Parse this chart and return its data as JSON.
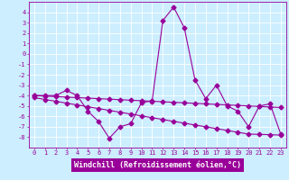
{
  "x": [
    0,
    1,
    2,
    3,
    4,
    5,
    6,
    7,
    8,
    9,
    10,
    11,
    12,
    13,
    14,
    15,
    16,
    17,
    18,
    19,
    20,
    21,
    22,
    23
  ],
  "line1": [
    -4,
    -4,
    -4,
    -3.5,
    -4,
    -5.5,
    -6.5,
    -8.1,
    -7,
    -6.7,
    -4.7,
    -4.5,
    3.2,
    4.5,
    2.5,
    -2.5,
    -4.3,
    -3.0,
    -5.0,
    -5.5,
    -7.0,
    -5.0,
    -4.8,
    -7.7
  ],
  "line2": [
    -4.0,
    -4.05,
    -4.1,
    -4.15,
    -4.2,
    -4.25,
    -4.3,
    -4.35,
    -4.4,
    -4.45,
    -4.5,
    -4.55,
    -4.6,
    -4.65,
    -4.7,
    -4.75,
    -4.8,
    -4.85,
    -4.9,
    -4.95,
    -5.0,
    -5.05,
    -5.1,
    -5.15
  ],
  "line3": [
    -4.2,
    -4.38,
    -4.55,
    -4.73,
    -4.9,
    -5.08,
    -5.25,
    -5.43,
    -5.6,
    -5.78,
    -5.95,
    -6.13,
    -6.3,
    -6.48,
    -6.65,
    -6.83,
    -7.0,
    -7.18,
    -7.35,
    -7.53,
    -7.7,
    -7.73,
    -7.76,
    -7.8
  ],
  "ylim": [
    -9,
    5
  ],
  "yticks": [
    4,
    3,
    2,
    1,
    0,
    -1,
    -2,
    -3,
    -4,
    -5,
    -6,
    -7,
    -8
  ],
  "xticks": [
    0,
    1,
    2,
    3,
    4,
    5,
    6,
    7,
    8,
    9,
    10,
    11,
    12,
    13,
    14,
    15,
    16,
    17,
    18,
    19,
    20,
    21,
    22,
    23
  ],
  "xlabel": "Windchill (Refroidissement éolien,°C)",
  "color": "#990099",
  "bg_color": "#cceeff",
  "xlabel_bg": "#990099",
  "xlabel_fg": "#ffffff",
  "grid_color": "#ffffff",
  "marker": "D",
  "markersize": 2.5,
  "linewidth": 0.8,
  "tick_fontsize": 5.0,
  "xlabel_fontsize": 6.0
}
